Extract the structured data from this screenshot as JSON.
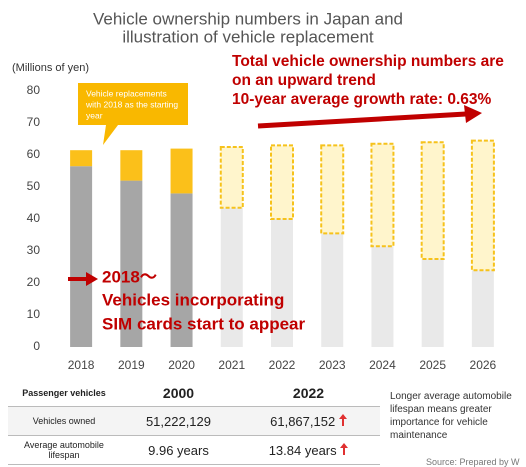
{
  "chart_data": {
    "type": "bar",
    "stacked": true,
    "title_lines": [
      "Vehicle ownership numbers in Japan and",
      "illustration of vehicle replacement"
    ],
    "y_axis_label": "(Millions of yen)",
    "categories": [
      "2018",
      "2019",
      "2020",
      "2021",
      "2022",
      "2023",
      "2024",
      "2025",
      "2026"
    ],
    "series": [
      {
        "color": "#a6a6a6",
        "values": [
          56.5,
          52,
          48,
          null,
          null,
          null,
          null,
          null,
          null
        ]
      },
      {
        "color": "#e9e9e9",
        "values": [
          null,
          null,
          null,
          43.5,
          40,
          35.5,
          31.5,
          27.5,
          24
        ]
      },
      {
        "color": "#fbc01a",
        "values": [
          5,
          9.5,
          14,
          null,
          null,
          null,
          null,
          null,
          null
        ]
      },
      {
        "color": "#fff5cc",
        "border_color": "#f6c21b",
        "dashed": true,
        "values": [
          null,
          null,
          null,
          19,
          23,
          27.5,
          32,
          36.5,
          40.5
        ]
      }
    ],
    "ylim": [
      0,
      80
    ],
    "yticks": [
      0,
      10,
      20,
      30,
      40,
      50,
      60,
      70,
      80
    ],
    "grid": false,
    "callout_lines": [
      "Vehicle replacements",
      "with 2018 as the starting",
      "year"
    ],
    "trend_lines": [
      "Total vehicle ownership numbers are",
      "on an upward trend",
      "10-year average growth rate: 0.63%"
    ],
    "sim_lines": [
      "2018～",
      "Vehicles incorporating",
      "SIM cards start to appear"
    ]
  },
  "table": {
    "header": [
      "Passenger vehicles",
      "2000",
      "2022"
    ],
    "rows": [
      [
        "Vehicles owned",
        "51,222,129",
        "61,867,152"
      ],
      [
        "Average automobile lifespan",
        "9.96 years",
        "13.84 years"
      ]
    ]
  },
  "note": "Longer average automobile lifespan means greater importance for vehicle maintenance",
  "source": "Source: Prepared by W"
}
